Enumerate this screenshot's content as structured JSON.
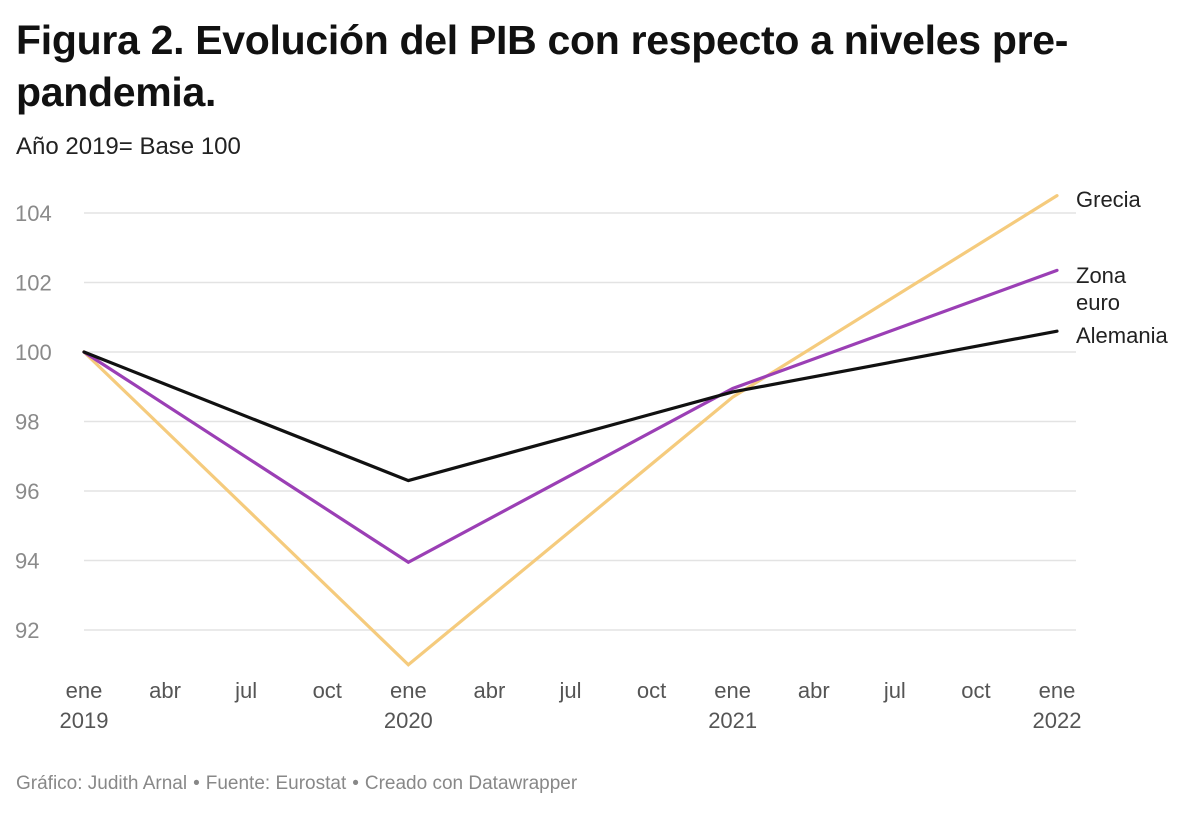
{
  "header": {
    "title": "Figura 2. Evolución del PIB con respecto a niveles pre-pandemia.",
    "subtitle": "Año 2019= Base 100"
  },
  "footer": {
    "credit": "Gráfico: Judith Arnal",
    "source": "Fuente: Eurostat",
    "tool": "Creado con Datawrapper",
    "separator": "•"
  },
  "chart_data": {
    "type": "line",
    "title": "Figura 2. Evolución del PIB con respecto a niveles pre-pandemia.",
    "subtitle": "Año 2019= Base 100",
    "xlabel": "",
    "ylabel": "",
    "x": [
      "2019-01",
      "2020-01",
      "2021-01",
      "2022-01"
    ],
    "xlim": [
      "2019-01",
      "2022-01"
    ],
    "ylim": [
      91,
      104.5
    ],
    "yticks": [
      92,
      94,
      96,
      98,
      100,
      102,
      104
    ],
    "xticks": [
      {
        "month": "ene",
        "year": "2019"
      },
      {
        "month": "abr",
        "year": ""
      },
      {
        "month": "jul",
        "year": ""
      },
      {
        "month": "oct",
        "year": ""
      },
      {
        "month": "ene",
        "year": "2020"
      },
      {
        "month": "abr",
        "year": ""
      },
      {
        "month": "jul",
        "year": ""
      },
      {
        "month": "oct",
        "year": ""
      },
      {
        "month": "ene",
        "year": "2021"
      },
      {
        "month": "abr",
        "year": ""
      },
      {
        "month": "jul",
        "year": ""
      },
      {
        "month": "oct",
        "year": ""
      },
      {
        "month": "ene",
        "year": "2022"
      }
    ],
    "grid": true,
    "legend": "direct labels at right end of lines",
    "series": [
      {
        "name": "Grecia",
        "label_lines": [
          "Grecia"
        ],
        "color": "#f5cb7d",
        "values": [
          100,
          91.0,
          98.7,
          104.5
        ]
      },
      {
        "name": "Zona euro",
        "label_lines": [
          "Zona",
          "euro"
        ],
        "color": "#9b3fb5",
        "values": [
          100,
          93.95,
          98.95,
          102.35
        ]
      },
      {
        "name": "Alemania",
        "label_lines": [
          "Alemania"
        ],
        "color": "#111111",
        "values": [
          100,
          96.3,
          98.85,
          100.6
        ]
      }
    ],
    "colors": {
      "grid": "#e3e3e3",
      "tick_label": "#8a8a8a",
      "x_tick_label": "#555555",
      "series_label": "#222222"
    }
  }
}
